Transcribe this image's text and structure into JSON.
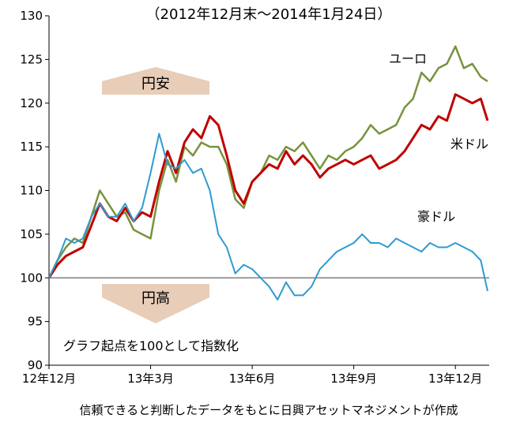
{
  "chart_data": {
    "type": "line",
    "title": "（2012年12月末～2014年1月24日）",
    "annotations": [
      "円安",
      "円高",
      "グラフ起点を100として指数化"
    ],
    "source": "信頼できると判断したデータをもとに日興アセットマネジメントが作成",
    "reference_line": 100,
    "xlim": [
      0,
      13
    ],
    "xticks": [
      {
        "value": 0,
        "label": "12年12月"
      },
      {
        "value": 3,
        "label": "13年3月"
      },
      {
        "value": 6,
        "label": "13年6月"
      },
      {
        "value": 9,
        "label": "13年9月"
      },
      {
        "value": 12,
        "label": "13年12月"
      }
    ],
    "ylim": [
      90,
      130
    ],
    "yticks": [
      90,
      95,
      100,
      105,
      110,
      115,
      120,
      125,
      130
    ],
    "x": [
      0,
      0.25,
      0.5,
      0.75,
      1,
      1.25,
      1.5,
      1.75,
      2,
      2.25,
      2.5,
      2.75,
      3,
      3.25,
      3.5,
      3.75,
      4,
      4.25,
      4.5,
      4.75,
      5,
      5.25,
      5.5,
      5.75,
      6,
      6.25,
      6.5,
      6.75,
      7,
      7.25,
      7.5,
      7.75,
      8,
      8.25,
      8.5,
      8.75,
      9,
      9.25,
      9.5,
      9.75,
      10,
      10.25,
      10.5,
      10.75,
      11,
      11.25,
      11.5,
      11.75,
      12,
      12.25,
      12.5,
      12.75,
      12.95
    ],
    "series": [
      {
        "name": "ユーロ",
        "color": "#77933c",
        "values": [
          100,
          102,
          103.5,
          104.5,
          104,
          107,
          110,
          108.5,
          107,
          107.5,
          105.5,
          105,
          104.5,
          110,
          113.5,
          111,
          115,
          114,
          115.5,
          115,
          115,
          113,
          109,
          108,
          111,
          112,
          114,
          113.5,
          115,
          114.5,
          115.5,
          114,
          112.5,
          114,
          113.5,
          114.5,
          115,
          116,
          117.5,
          116.5,
          117,
          117.5,
          119.5,
          120.5,
          123.5,
          122.5,
          124,
          124.5,
          126.5,
          124,
          124.5,
          123,
          122.5
        ]
      },
      {
        "name": "米ドル",
        "color": "#c00000",
        "values": [
          100,
          101.5,
          102.5,
          103,
          103.5,
          106,
          108.5,
          107,
          106.5,
          108,
          106.5,
          107.5,
          107,
          111,
          114.5,
          112,
          115.5,
          117,
          116,
          118.5,
          117.5,
          114,
          110,
          108.5,
          111,
          112,
          113,
          112.5,
          114.5,
          113,
          114,
          113,
          111.5,
          112.5,
          113,
          113.5,
          113,
          113.5,
          114,
          112.5,
          113,
          113.5,
          114.5,
          116,
          117.5,
          117,
          118.5,
          118,
          121,
          120.5,
          120,
          120.5,
          118
        ]
      },
      {
        "name": "豪ドル",
        "color": "#2e9bd0",
        "values": [
          100,
          102,
          104.5,
          104,
          104.5,
          107,
          108.5,
          107,
          107,
          108.5,
          106.5,
          108,
          112,
          116.5,
          113,
          112.5,
          113.5,
          112,
          112.5,
          110,
          105,
          103.5,
          100.5,
          101.5,
          101,
          100,
          99,
          97.5,
          99.5,
          98,
          98,
          99,
          101,
          102,
          103,
          103.5,
          104,
          105,
          104,
          104,
          103.5,
          104.5,
          104,
          103.5,
          103,
          104,
          103.5,
          103.5,
          104,
          103.5,
          103,
          102,
          98.5
        ]
      }
    ]
  }
}
